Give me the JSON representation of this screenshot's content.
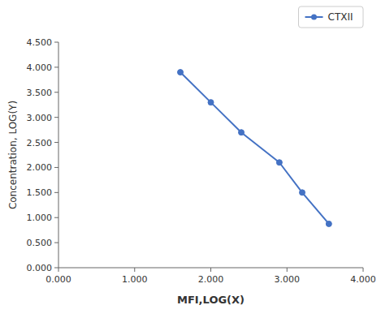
{
  "chart_data": {
    "type": "line",
    "xlabel": "MFI,LOG(X)",
    "ylabel": "Concentration, LOG(Y)",
    "x": [
      1.6,
      2.0,
      2.4,
      2.9,
      3.2,
      3.55
    ],
    "series": [
      {
        "name": "CTXII",
        "color": "#4472C4",
        "marker": "circle",
        "values": [
          3.9,
          3.3,
          2.7,
          2.1,
          1.5,
          0.875
        ]
      }
    ],
    "xlim": [
      0.0,
      4.0
    ],
    "ylim": [
      0.0,
      4.5
    ],
    "xticks": [
      {
        "value": 0.0,
        "label": "0.000"
      },
      {
        "value": 1.0,
        "label": "1.000"
      },
      {
        "value": 2.0,
        "label": "2.000"
      },
      {
        "value": 3.0,
        "label": "3.000"
      },
      {
        "value": 4.0,
        "label": "4.000"
      }
    ],
    "yticks": [
      {
        "value": 0.0,
        "label": "0.000"
      },
      {
        "value": 0.5,
        "label": "0.500"
      },
      {
        "value": 1.0,
        "label": "1.000"
      },
      {
        "value": 1.5,
        "label": "1.500"
      },
      {
        "value": 2.0,
        "label": "2.000"
      },
      {
        "value": 2.5,
        "label": "2.500"
      },
      {
        "value": 3.0,
        "label": "3.000"
      },
      {
        "value": 3.5,
        "label": "3.500"
      },
      {
        "value": 4.0,
        "label": "4.000"
      },
      {
        "value": 4.5,
        "label": "4.500"
      }
    ],
    "grid": false,
    "legend": "upper right"
  }
}
